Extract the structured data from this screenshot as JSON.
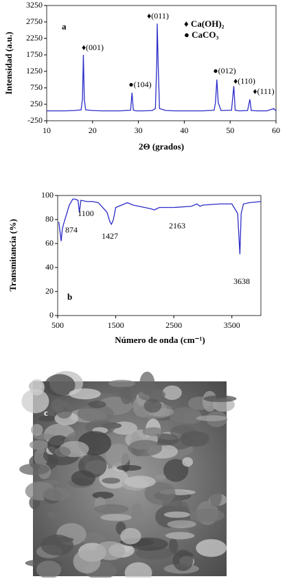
{
  "chart_data": [
    {
      "type": "line",
      "label": "a",
      "xlabel": "2Θ (grados)",
      "ylabel": "Intensidad (a.u.)",
      "xlim": [
        10,
        60
      ],
      "xticks": [
        10,
        20,
        30,
        40,
        50,
        60
      ],
      "ylim": [
        -250,
        3250
      ],
      "yticks": [
        -250,
        250,
        750,
        1250,
        1750,
        2250,
        2750,
        3250
      ],
      "series": [
        {
          "color": "#2b2bc8",
          "x": [
            10,
            12,
            14,
            16,
            17.5,
            17.8,
            18,
            18.2,
            18.5,
            20,
            22,
            24,
            26,
            28.3,
            28.6,
            28.9,
            29.5,
            31,
            33,
            33.7,
            34,
            34.1,
            34.3,
            34.6,
            36,
            38,
            40,
            42,
            44,
            46.5,
            46.8,
            47.1,
            47.4,
            48,
            50.3,
            50.8,
            51.1,
            52,
            53.8,
            54.3,
            54.6,
            56,
            58,
            59.5,
            60
          ],
          "values": [
            50,
            50,
            50,
            60,
            80,
            400,
            1750,
            400,
            80,
            60,
            50,
            50,
            50,
            70,
            600,
            70,
            50,
            50,
            60,
            120,
            1500,
            2700,
            1500,
            120,
            60,
            50,
            50,
            50,
            50,
            70,
            300,
            1000,
            300,
            60,
            70,
            800,
            70,
            50,
            60,
            400,
            60,
            50,
            50,
            120,
            50
          ]
        }
      ],
      "annotations": [
        "♦(001)",
        "●(104)",
        "♦(011)",
        "●(012)",
        "♦(110)",
        "♦(111)",
        "♦ Ca(OH)₂",
        "● CaCO₃"
      ]
    },
    {
      "type": "line",
      "label": "b",
      "xlabel": "Número de onda (cm⁻¹)",
      "ylabel": "Transmitancia (%)",
      "xlim": [
        500,
        4000
      ],
      "xticks": [
        500,
        1500,
        2500,
        3500
      ],
      "ylim": [
        0,
        100
      ],
      "yticks": [
        0,
        20,
        40,
        60,
        80,
        100
      ],
      "series": [
        {
          "color": "#2b2bc8",
          "x": [
            520,
            540,
            560,
            580,
            600,
            650,
            700,
            760,
            800,
            850,
            874,
            900,
            1000,
            1100,
            1200,
            1350,
            1400,
            1427,
            1460,
            1500,
            1600,
            1700,
            1800,
            2000,
            2100,
            2163,
            2250,
            2500,
            2800,
            2900,
            2950,
            3000,
            3300,
            3500,
            3600,
            3638,
            3660,
            3700,
            3800,
            4000
          ],
          "values": [
            78,
            70,
            62,
            72,
            76,
            84,
            92,
            97,
            97,
            96,
            86,
            96,
            95,
            95,
            94,
            86,
            78,
            76,
            80,
            90,
            92,
            94,
            92,
            90,
            89,
            88,
            90,
            90,
            91,
            93,
            91,
            92,
            93,
            93,
            85,
            51,
            85,
            93,
            94,
            95
          ]
        }
      ],
      "annotations": [
        "874",
        "1100",
        "1427",
        "2163",
        "3638"
      ]
    }
  ],
  "image": {
    "label": "c"
  }
}
